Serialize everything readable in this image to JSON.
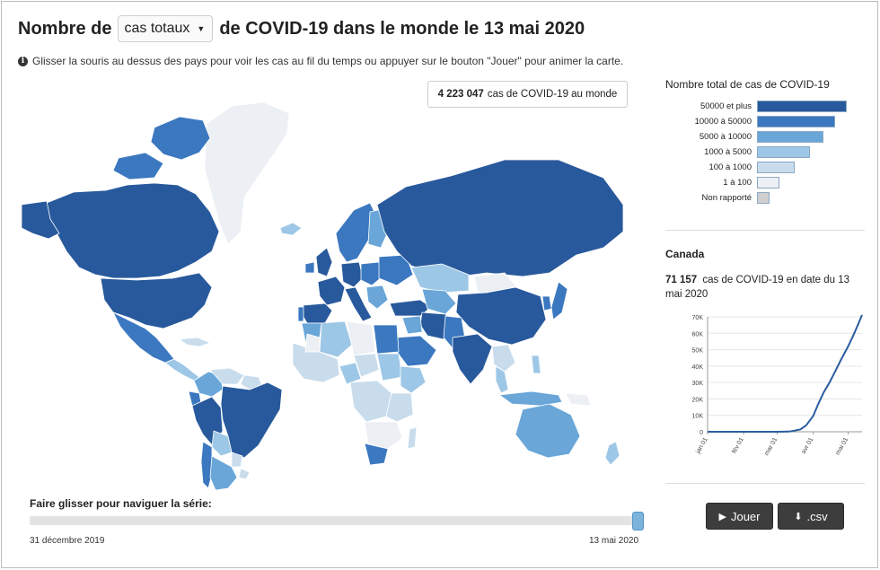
{
  "header": {
    "title_prefix": "Nombre de",
    "metric_select": "cas totaux",
    "title_suffix": "de COVID-19 dans le monde le 13 mai 2020",
    "info_text": "Glisser la souris au dessus des pays pour voir les cas au fil du temps ou appuyer sur le bouton \"Jouer\" pour animer la carte."
  },
  "world_total": {
    "value": "4 223 047",
    "label": "cas de COVID-19 au monde"
  },
  "colors": {
    "c50000": "#28599c",
    "c10000": "#3b78c0",
    "c5000": "#6aa6d8",
    "c1000": "#9dc7e6",
    "c100": "#c8dcec",
    "c1": "#eceff3",
    "nr": "#cfcfcf",
    "border": "#ffffff"
  },
  "legend": {
    "title": "Nombre total de cas de COVID-19",
    "items": [
      {
        "label": "50000 et plus",
        "color": "#28599c",
        "width": 0.95
      },
      {
        "label": "10000 à 50000",
        "color": "#3b78c0",
        "width": 0.83
      },
      {
        "label": "5000 à 10000",
        "color": "#6aa6d8",
        "width": 0.7
      },
      {
        "label": "1000 à 5000",
        "color": "#9dc7e6",
        "width": 0.56
      },
      {
        "label": "100 à 1000",
        "color": "#c8dcec",
        "width": 0.4
      },
      {
        "label": "1 à 100",
        "color": "#eceff3",
        "width": 0.24
      },
      {
        "label": "Non rapporté",
        "color": "#cfcfcf",
        "width": 0.13
      }
    ]
  },
  "selected_country": {
    "name": "Canada",
    "cases_value": "71 157",
    "cases_text": "cas de COVID-19 en date du 13 mai 2020"
  },
  "country_chart": {
    "type": "line",
    "y_ticks": [
      "0",
      "10K",
      "20K",
      "30K",
      "40K",
      "50K",
      "60K",
      "70K"
    ],
    "x_ticks": [
      "jan 01",
      "fév 01",
      "mar 01",
      "avr 01",
      "mai 01"
    ],
    "ylim": [
      0,
      70000
    ],
    "x": [
      0,
      31,
      60,
      70,
      75,
      80,
      85,
      91,
      95,
      100,
      105,
      110,
      115,
      121,
      125,
      130,
      133
    ],
    "y": [
      0,
      4,
      27,
      100,
      700,
      1500,
      4000,
      9700,
      16500,
      24000,
      30000,
      37000,
      44000,
      52000,
      58000,
      66000,
      71157
    ],
    "line_color": "#2a5d9f"
  },
  "timeline": {
    "label": "Faire glisser pour naviguer la série:",
    "start": "31 décembre 2019",
    "end": "13 mai 2020",
    "position": 1.0
  },
  "buttons": {
    "play": "Jouer",
    "csv": ".csv"
  }
}
